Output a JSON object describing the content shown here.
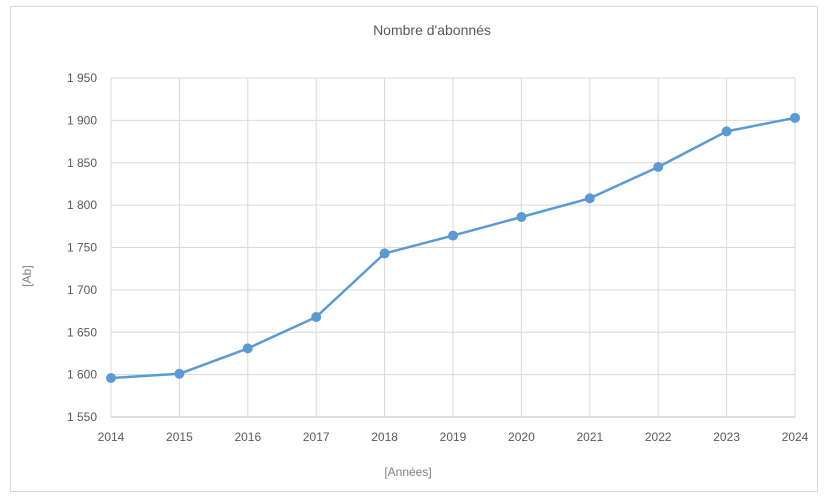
{
  "chart_data": {
    "type": "line",
    "title": "Nombre d'abonnés",
    "xlabel": "[Années]",
    "ylabel": "[Ab]",
    "categories": [
      "2014",
      "2015",
      "2016",
      "2017",
      "2018",
      "2019",
      "2020",
      "2021",
      "2022",
      "2023",
      "2024"
    ],
    "series": [
      {
        "values": [
          1596,
          1601,
          1631,
          1668,
          1743,
          1764,
          1786,
          1808,
          1845,
          1887,
          1903
        ]
      }
    ],
    "ylim": [
      1550,
      1950
    ],
    "y_ticks": [
      "1 550",
      "1 600",
      "1 650",
      "1 700",
      "1 750",
      "1 800",
      "1 850",
      "1 900",
      "1 950"
    ],
    "grid": true,
    "line_color": "#5b9bd5"
  }
}
